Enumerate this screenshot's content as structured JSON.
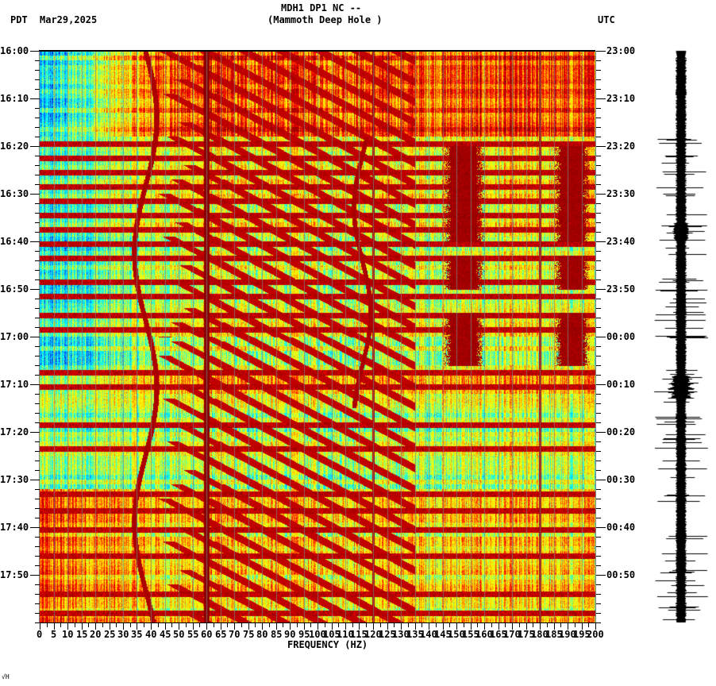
{
  "header": {
    "title_line1": "MDH1 DP1 NC --",
    "title_line2": "(Mammoth Deep Hole )",
    "left_timezone": "PDT",
    "date": "Mar29,2025",
    "right_timezone": "UTC"
  },
  "corner_mark": "√H",
  "chart_data": {
    "type": "heatmap",
    "title": "MDH1 DP1 NC -- (Mammoth Deep Hole )",
    "subtitle": "Mar29,2025",
    "xlabel": "FREQUENCY (HZ)",
    "ylabel_left": "PDT",
    "ylabel_right": "UTC",
    "xlim": [
      0,
      200
    ],
    "x_ticks": [
      "0",
      "5",
      "10",
      "15",
      "20",
      "25",
      "30",
      "35",
      "40",
      "45",
      "50",
      "55",
      "60",
      "65",
      "70",
      "75",
      "80",
      "85",
      "90",
      "95",
      "100",
      "105",
      "110",
      "115",
      "120",
      "125",
      "130",
      "135",
      "140",
      "145",
      "150",
      "155",
      "160",
      "165",
      "170",
      "175",
      "180",
      "185",
      "190",
      "195",
      "200"
    ],
    "y_ticks_left": [
      "16:00",
      "16:10",
      "16:20",
      "16:30",
      "16:40",
      "16:50",
      "17:00",
      "17:10",
      "17:20",
      "17:30",
      "17:40",
      "17:50"
    ],
    "y_ticks_right": [
      "23:00",
      "23:10",
      "23:20",
      "23:30",
      "23:40",
      "23:50",
      "00:00",
      "00:10",
      "00:20",
      "00:30",
      "00:40",
      "00:50"
    ],
    "time_span_minutes": 120,
    "colormap": [
      "#0000c8",
      "#0064ff",
      "#00c8ff",
      "#00ffff",
      "#64ff96",
      "#c8ff32",
      "#ffff00",
      "#ffc800",
      "#ff6400",
      "#ff0000",
      "#c80000",
      "#8b0000"
    ],
    "persistent_lines_hz": [
      60,
      120,
      180
    ],
    "broadband_bursts_minutes": [
      19.5,
      22.5,
      25.5,
      28.5,
      31.5,
      34.5,
      37.5,
      40.5,
      43.5,
      48.5,
      51.5,
      55.5,
      58.5,
      67.5,
      70.5,
      78.5,
      83.5,
      93,
      96.5,
      100.5,
      106,
      114,
      118
    ],
    "background_regions": [
      {
        "minutes": [
          0,
          18
        ],
        "low_freq_level": 0.2,
        "high_freq_level": 0.78
      },
      {
        "minutes": [
          18,
          68
        ],
        "low_freq_level": 0.25,
        "high_freq_level": 0.5
      },
      {
        "minutes": [
          68,
          72
        ],
        "low_freq_level": 0.35,
        "high_freq_level": 0.62
      },
      {
        "minutes": [
          72,
          92
        ],
        "low_freq_level": 0.38,
        "high_freq_level": 0.45
      },
      {
        "minutes": [
          92,
          120
        ],
        "low_freq_level": 0.7,
        "high_freq_level": 0.55
      }
    ],
    "strong_patches": [
      {
        "hz": [
          145,
          160
        ],
        "minutes": [
          20,
          40
        ]
      },
      {
        "hz": [
          185,
          198
        ],
        "minutes": [
          20,
          40
        ]
      },
      {
        "hz": [
          145,
          160
        ],
        "minutes": [
          43,
          50
        ]
      },
      {
        "hz": [
          185,
          198
        ],
        "minutes": [
          43,
          50
        ]
      },
      {
        "hz": [
          145,
          160
        ],
        "minutes": [
          55,
          66
        ]
      },
      {
        "hz": [
          185,
          198
        ],
        "minutes": [
          55,
          66
        ]
      }
    ],
    "legend": "none",
    "grid": "vertical gray lines every 5 Hz"
  },
  "seismogram": {
    "label": "waveform trace",
    "burst_minutes": [
      70,
      71
    ]
  }
}
